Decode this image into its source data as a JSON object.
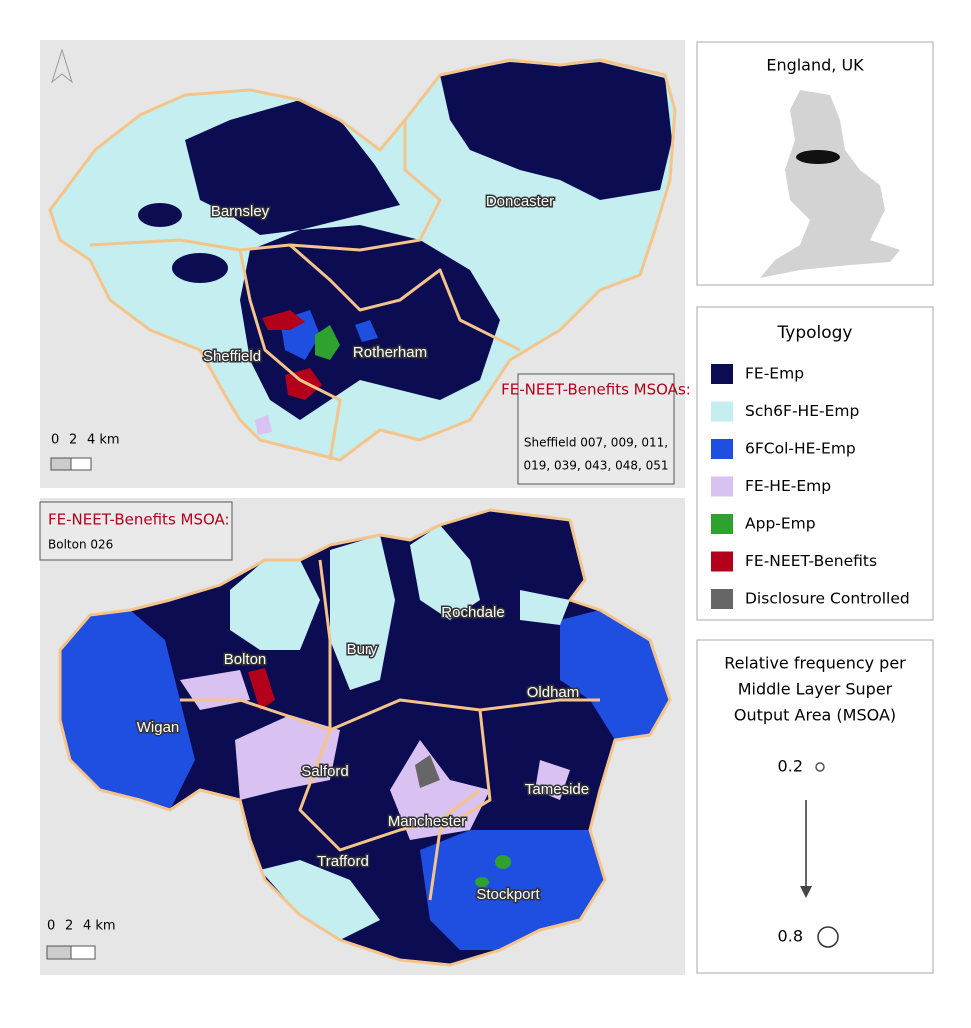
{
  "top_map": {
    "places": [
      "Barnsley",
      "Doncaster",
      "Sheffield",
      "Rotherham"
    ],
    "callout": {
      "title": "FE-NEET-Benefits MSOAs:",
      "lines": [
        "Sheffield 007, 009, 011,",
        "019, 039, 043, 048, 051"
      ]
    },
    "scale": [
      "0",
      "2",
      "4 km"
    ]
  },
  "bottom_map": {
    "places": [
      "Bolton",
      "Bury",
      "Rochdale",
      "Oldham",
      "Wigan",
      "Salford",
      "Tameside",
      "Manchester",
      "Trafford",
      "Stockport"
    ],
    "callout": {
      "title": "FE-NEET-Benefits MSOA:",
      "lines": [
        "Bolton 026"
      ]
    },
    "scale": [
      "0",
      "2",
      "4 km"
    ]
  },
  "inset": {
    "title": "England, UK"
  },
  "legend": {
    "title": "Typology",
    "items": [
      {
        "label": "FE-Emp",
        "color": "#0b0c52"
      },
      {
        "label": "Sch6F-HE-Emp",
        "color": "#c4eef0"
      },
      {
        "label": "6FCol-HE-Emp",
        "color": "#1f4fe0"
      },
      {
        "label": "FE-HE-Emp",
        "color": "#d9c2f2"
      },
      {
        "label": "App-Emp",
        "color": "#2ea12e"
      },
      {
        "label": "FE-NEET-Benefits",
        "color": "#b3001b"
      },
      {
        "label": "Disclosure Controlled",
        "color": "#666666"
      }
    ]
  },
  "size_legend": {
    "title_lines": [
      "Relative frequency per",
      "Middle Layer Super",
      "Output Area (MSOA)"
    ],
    "values": [
      0.2,
      0.8
    ]
  }
}
